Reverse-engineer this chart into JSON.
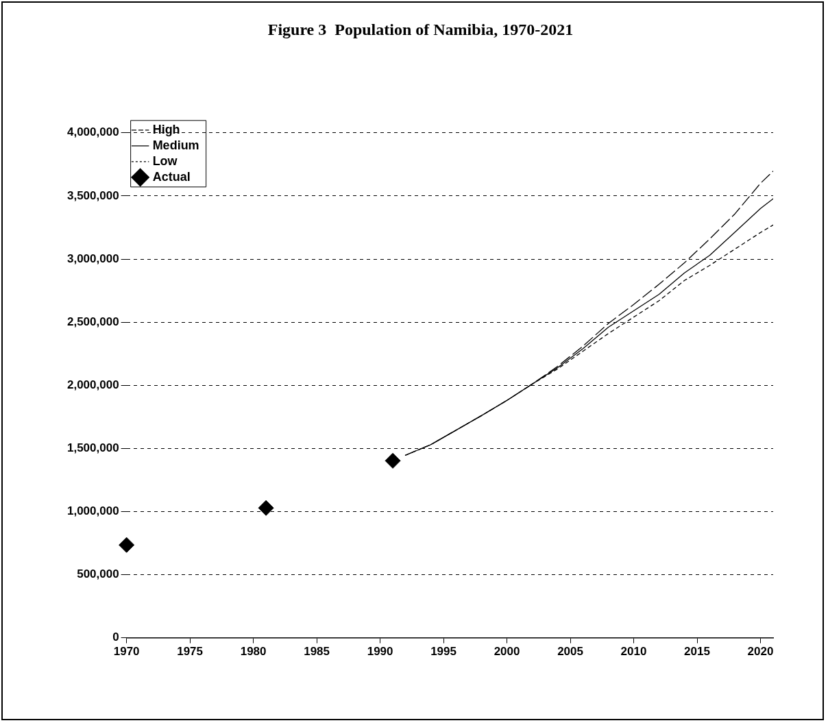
{
  "chart_data": {
    "type": "line",
    "title": "Figure 3  Population of Namibia, 1970-2021",
    "xlim": [
      1970,
      2021
    ],
    "xticks": [
      1970,
      1975,
      1980,
      1985,
      1990,
      1995,
      2000,
      2005,
      2010,
      2015,
      2020
    ],
    "ylim": [
      0,
      4000000
    ],
    "yticks": [
      0,
      {
        "value": 500000,
        "label": "500,000"
      },
      {
        "value": 1000000,
        "label": "1,000,000"
      },
      {
        "value": 1500000,
        "label": "1,500,000"
      },
      {
        "value": 2000000,
        "label": "2,000,000"
      },
      {
        "value": 2500000,
        "label": "2,500,000"
      },
      {
        "value": 3000000,
        "label": "3,000,000"
      },
      {
        "value": 3500000,
        "label": "3,500,000"
      },
      {
        "value": 4000000,
        "label": "4,000,000"
      }
    ],
    "grid": "y",
    "legend": "top left",
    "marker": "none",
    "series": [
      {
        "name": "High",
        "color": "#000000",
        "line_style": "dashed",
        "x": [
          1992,
          1994,
          1996,
          1998,
          2000,
          2002,
          2004,
          2006,
          2008,
          2010,
          2012,
          2014,
          2016,
          2018,
          2020,
          2021
        ],
        "values": [
          1446000,
          1530000,
          1645000,
          1760000,
          1880000,
          2010000,
          2150000,
          2310000,
          2490000,
          2640000,
          2800000,
          2970000,
          3160000,
          3360000,
          3600000,
          3696000
        ]
      },
      {
        "name": "Medium",
        "color": "#000000",
        "line_style": "solid",
        "x": [
          1992,
          1994,
          1996,
          1998,
          2000,
          2002,
          2004,
          2006,
          2008,
          2010,
          2012,
          2014,
          2016,
          2018,
          2020,
          2021
        ],
        "values": [
          1446000,
          1530000,
          1645000,
          1760000,
          1880000,
          2010000,
          2140000,
          2290000,
          2460000,
          2590000,
          2720000,
          2890000,
          3030000,
          3214000,
          3400000,
          3478000
        ]
      },
      {
        "name": "Low",
        "color": "#000000",
        "line_style": "dotted",
        "x": [
          1992,
          1994,
          1996,
          1998,
          2000,
          2002,
          2004,
          2006,
          2008,
          2010,
          2012,
          2014,
          2016,
          2018,
          2020,
          2021
        ],
        "values": [
          1446000,
          1530000,
          1645000,
          1760000,
          1880000,
          2010000,
          2130000,
          2270000,
          2410000,
          2540000,
          2670000,
          2830000,
          2950000,
          3080000,
          3210000,
          3270000
        ]
      },
      {
        "name": "Actual",
        "type": "scatter",
        "marker": "diamond",
        "color": "#000000",
        "x": [
          1970,
          1981,
          1991
        ],
        "values": [
          735000,
          1028000,
          1402000
        ]
      }
    ]
  }
}
